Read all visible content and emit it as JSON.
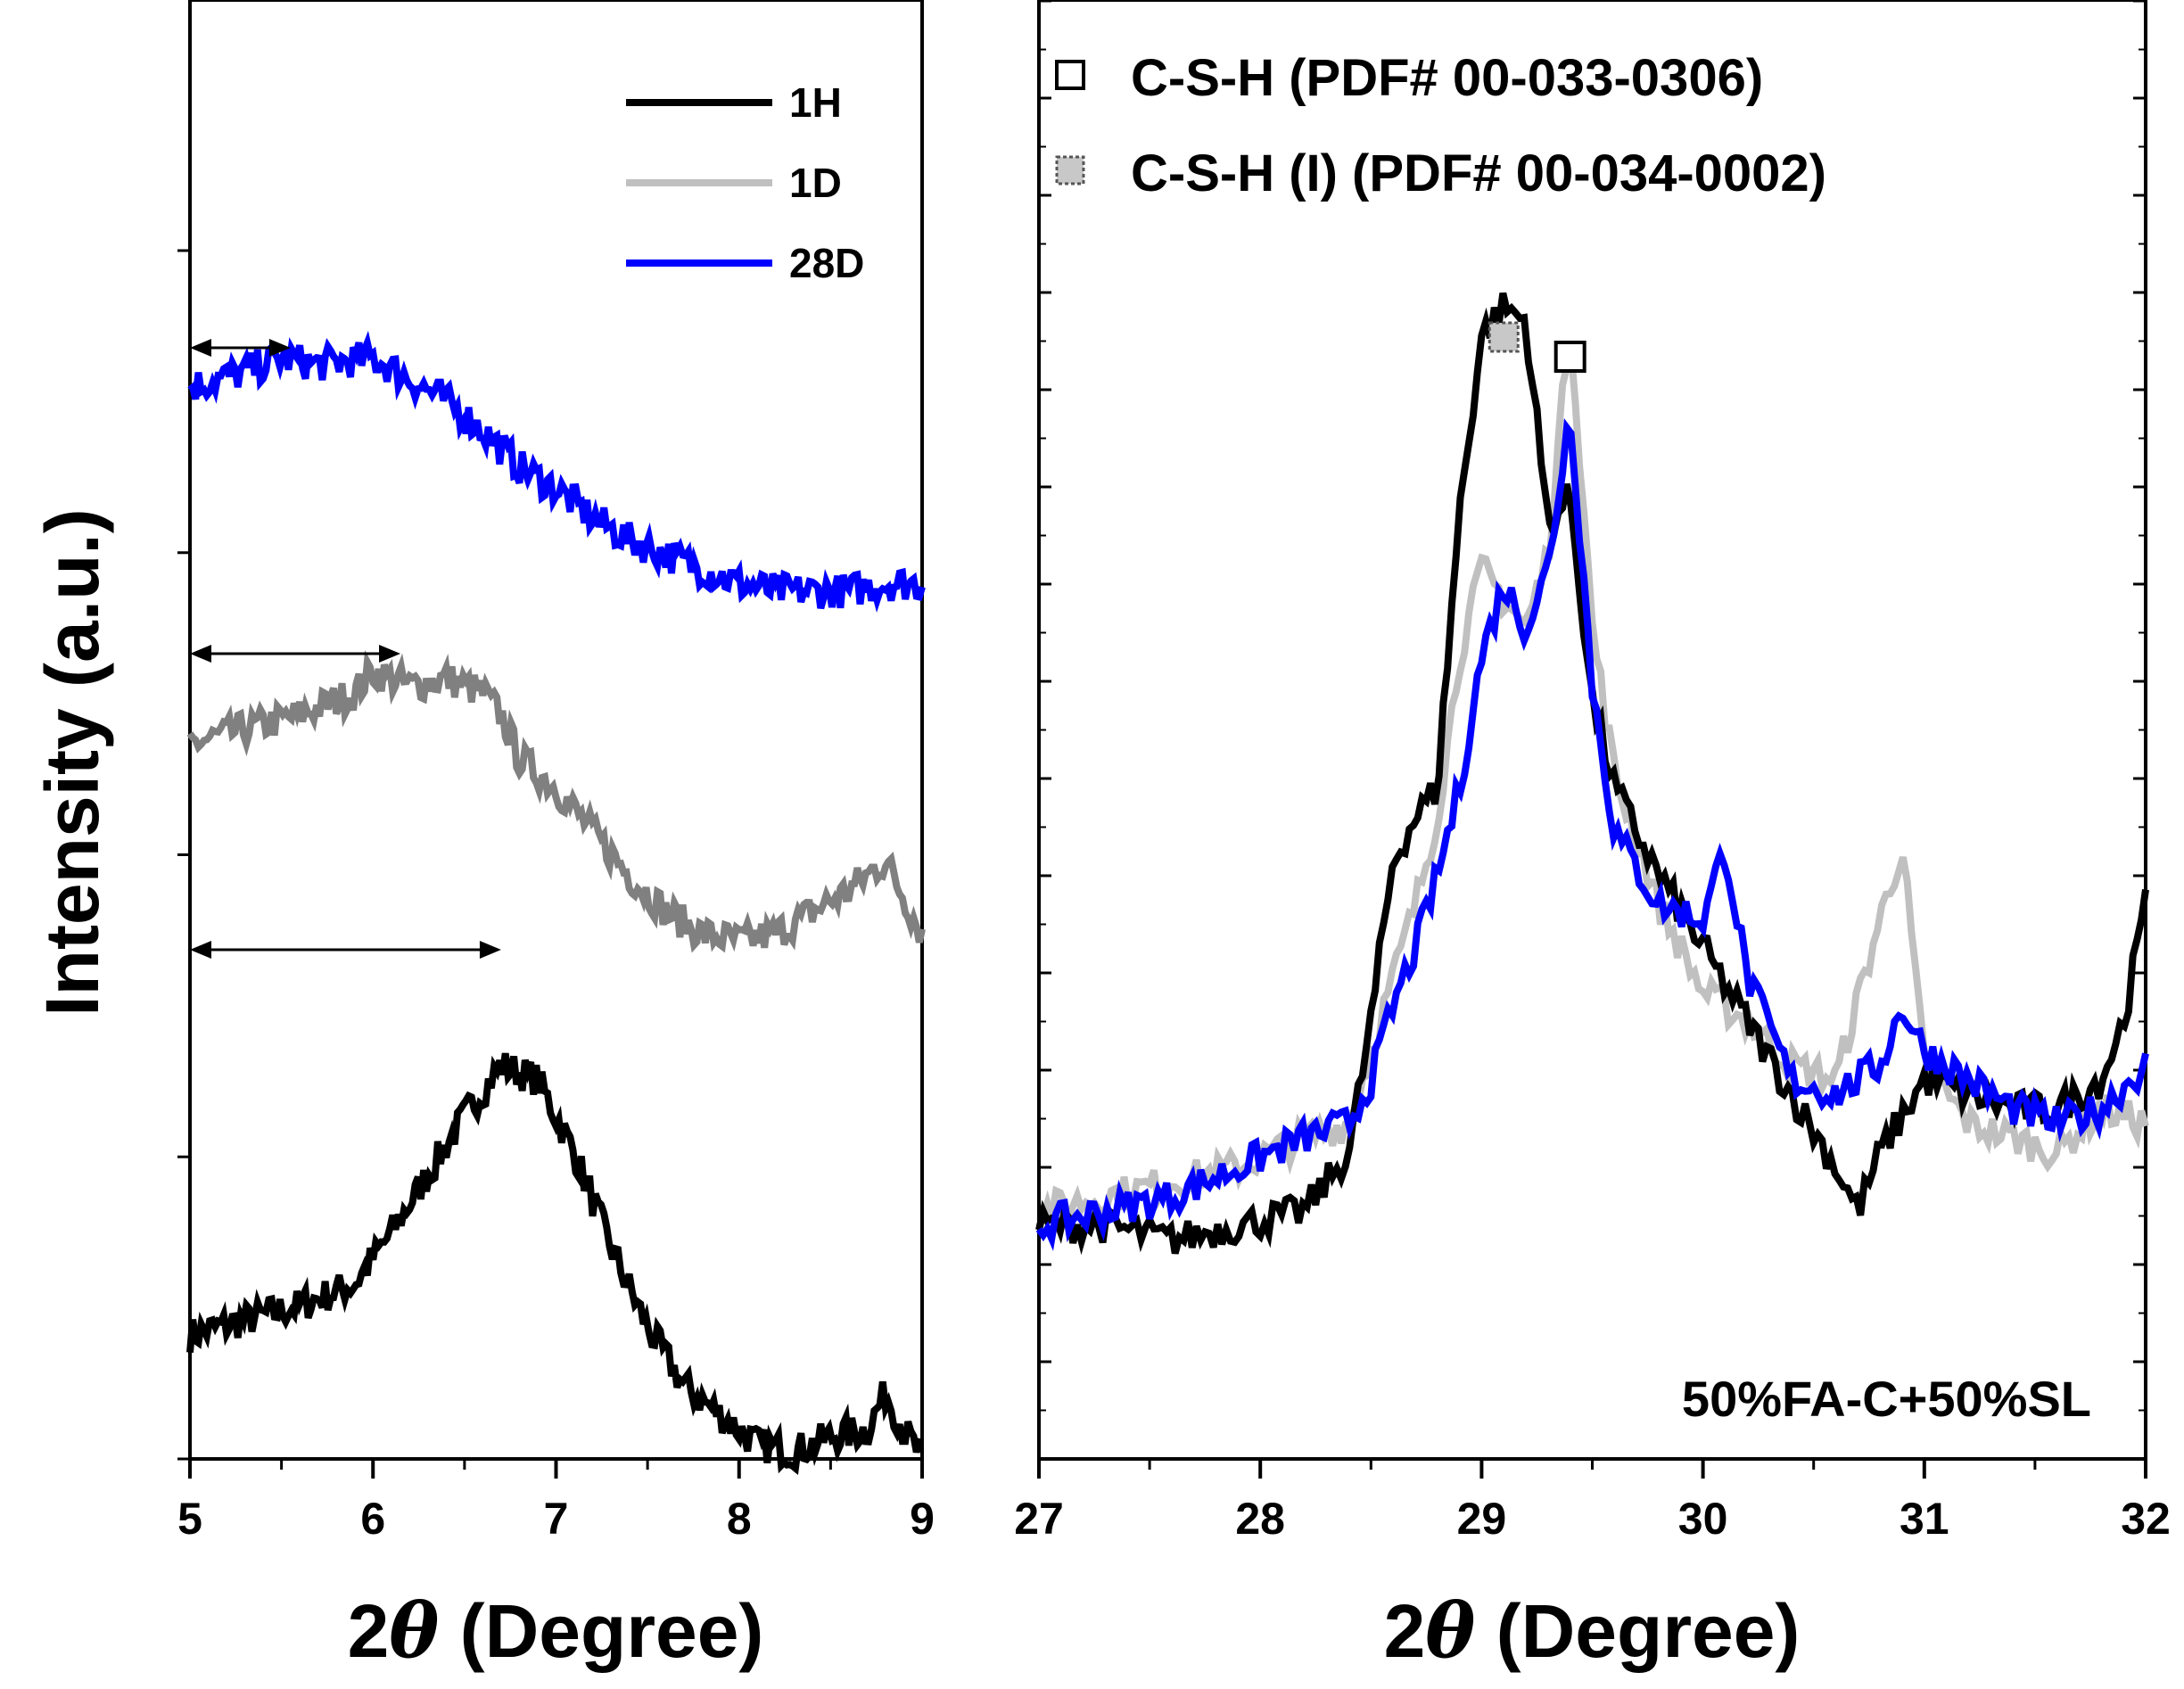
{
  "axis_title_x_prefix": "2",
  "axis_title_x_symbol": "θ",
  "axis_title_x_suffix": " (Degree)",
  "y_label": "Intensity (a.u.)",
  "chart_data": [
    {
      "type": "line",
      "panel": "left",
      "xlabel": "2θ (Degree)",
      "ylabel": "Intensity (a.u.)",
      "xlim": [
        5,
        9
      ],
      "ylim": [
        0,
        100
      ],
      "x_ticks": [
        "5",
        "6",
        "7",
        "8",
        "9"
      ],
      "legend": [
        "1H",
        "1D",
        "28D"
      ],
      "legend_position": "top-right",
      "series": [
        {
          "name": "1H",
          "color": "#000000",
          "x": [
            5.0,
            5.3,
            5.6,
            5.9,
            6.1,
            6.3,
            6.5,
            6.7,
            6.9,
            7.1,
            7.3,
            7.5,
            7.7,
            7.9,
            8.1,
            8.3,
            8.5,
            8.7,
            8.8,
            8.9,
            9.0
          ],
          "y": [
            8.5,
            9.5,
            10.5,
            12,
            15.5,
            19.5,
            23.5,
            27,
            26,
            21,
            14.5,
            9,
            5,
            3,
            1,
            0.5,
            1.5,
            2,
            4.5,
            2,
            0
          ]
        },
        {
          "name": "1D",
          "color": "#808080",
          "x": [
            5.0,
            5.3,
            5.6,
            5.9,
            6.0,
            6.2,
            6.4,
            6.6,
            6.7,
            6.8,
            7.0,
            7.2,
            7.4,
            7.6,
            7.8,
            8.0,
            8.2,
            8.4,
            8.6,
            8.8,
            9.0
          ],
          "y": [
            49,
            50,
            51,
            52.5,
            54,
            53,
            53.5,
            52.5,
            51,
            48,
            46,
            43,
            40,
            37.5,
            36,
            35.5,
            36,
            37.5,
            39,
            41,
            36
          ]
        },
        {
          "name": "28D",
          "color": "#0000ff",
          "x": [
            5.0,
            5.3,
            5.5,
            5.7,
            6.0,
            6.2,
            6.4,
            6.6,
            6.8,
            7.0,
            7.2,
            7.4,
            7.6,
            7.8,
            8.0,
            8.2,
            8.4,
            8.6,
            8.8,
            9.0
          ],
          "y": [
            73.5,
            74.5,
            75.5,
            75,
            75.5,
            74,
            72.5,
            70.5,
            68,
            66.5,
            64.5,
            63,
            62,
            61,
            60,
            59.5,
            59.5,
            59.5,
            60,
            60
          ]
        }
      ],
      "annotations": [
        {
          "type": "double-arrow",
          "x_from": 5.0,
          "x_to": 5.55,
          "series": "28D"
        },
        {
          "type": "double-arrow",
          "x_from": 5.0,
          "x_to": 6.15,
          "series": "1D"
        },
        {
          "type": "double-arrow",
          "x_from": 5.0,
          "x_to": 6.7,
          "series": "1H"
        }
      ]
    },
    {
      "type": "line",
      "panel": "right",
      "xlabel": "2θ (Degree)",
      "xlim": [
        27,
        32
      ],
      "ylim": [
        0,
        100
      ],
      "x_ticks": [
        "27",
        "28",
        "29",
        "30",
        "31",
        "32"
      ],
      "legend": [
        "C-S-H (PDF# 00-033-0306)",
        "C-S-H (I) (PDF# 00-034-0002)"
      ],
      "legend_position": "top-left",
      "markers": [
        {
          "name": "C-S-H",
          "x": 29.4,
          "style": "open-square"
        },
        {
          "name": "C-S-H (I)",
          "x": 29.1,
          "style": "gray-square"
        }
      ],
      "annotation_text": "50%FA-C+50%SL",
      "series": [
        {
          "name": "1H",
          "color": "#000000",
          "x": [
            27.0,
            27.3,
            27.6,
            27.9,
            28.2,
            28.4,
            28.5,
            28.6,
            28.7,
            28.8,
            28.9,
            29.0,
            29.1,
            29.2,
            29.3,
            29.4,
            29.5,
            29.6,
            29.8,
            30.0,
            30.2,
            30.4,
            30.6,
            30.7,
            30.8,
            31.0,
            31.2,
            31.4,
            31.6,
            31.8,
            31.9,
            32.0
          ],
          "y": [
            16,
            16,
            15,
            16,
            17,
            21,
            30,
            41,
            44,
            46,
            65,
            77,
            79,
            78,
            64,
            66,
            52,
            46,
            40,
            35,
            30,
            25,
            20,
            17,
            21,
            26,
            25,
            24,
            24,
            26,
            30,
            38
          ]
        },
        {
          "name": "1D",
          "color": "#c0c0c0",
          "x": [
            27.0,
            27.3,
            27.6,
            27.9,
            28.2,
            28.4,
            28.5,
            28.6,
            28.7,
            28.8,
            28.9,
            29.0,
            29.1,
            29.2,
            29.3,
            29.4,
            29.5,
            29.6,
            29.8,
            30.0,
            30.2,
            30.4,
            30.6,
            30.8,
            30.9,
            31.0,
            31.2,
            31.4,
            31.6,
            31.8,
            32.0
          ],
          "y": [
            17,
            18,
            19,
            20,
            22,
            23,
            28,
            33,
            38,
            44,
            55,
            61,
            59,
            57,
            62,
            78,
            57,
            47,
            38,
            32,
            30,
            27,
            26,
            37,
            42,
            27,
            23,
            22,
            21,
            24,
            23
          ]
        },
        {
          "name": "28D",
          "color": "#0000ff",
          "x": [
            27.0,
            27.3,
            27.6,
            27.9,
            28.2,
            28.4,
            28.5,
            28.6,
            28.7,
            28.8,
            28.9,
            29.0,
            29.1,
            29.2,
            29.3,
            29.4,
            29.5,
            29.6,
            29.8,
            30.0,
            30.1,
            30.2,
            30.4,
            30.6,
            30.8,
            30.9,
            31.0,
            31.2,
            31.4,
            31.6,
            31.8,
            32.0
          ],
          "y": [
            16,
            17,
            18,
            20,
            22,
            23,
            26,
            31,
            35,
            40,
            46,
            55,
            60,
            57,
            61,
            72,
            53,
            43,
            38,
            37,
            42,
            33,
            26,
            25,
            27,
            31,
            28,
            26,
            24,
            23,
            24,
            27
          ]
        }
      ]
    }
  ]
}
